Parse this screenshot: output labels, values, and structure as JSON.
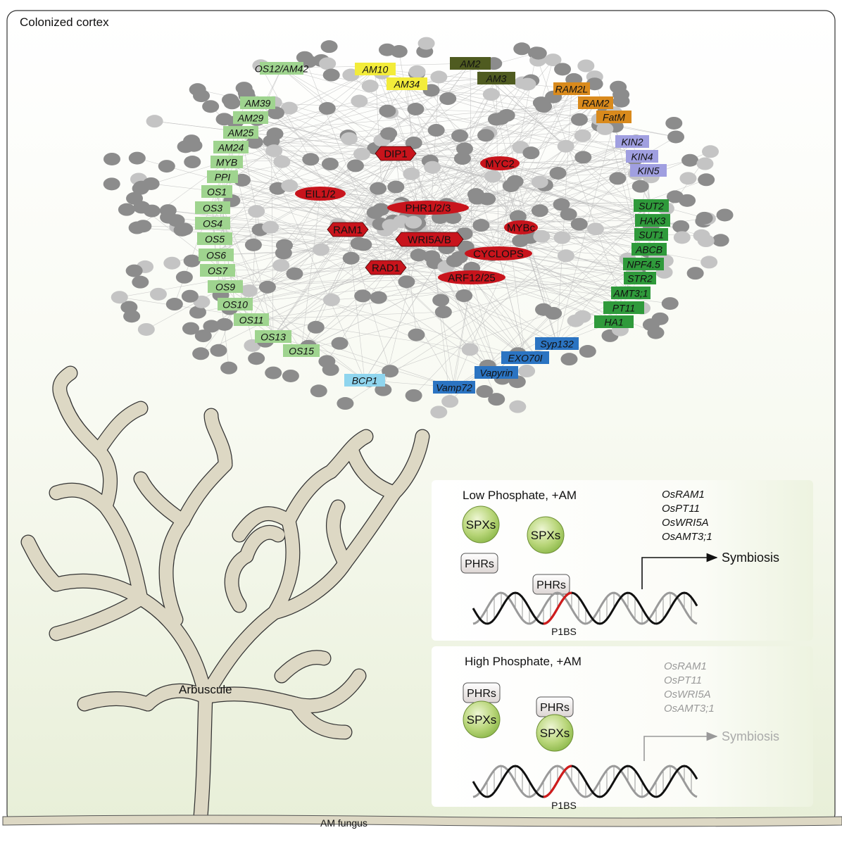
{
  "title": "Colonized cortex",
  "network": {
    "groups": [
      {
        "name": "left-light-green",
        "color": "#9fd48f",
        "labels": [
          "OS12/AM42",
          "AM39",
          "AM29",
          "AM25",
          "AM24",
          "MYB",
          "PPI",
          "OS1",
          "OS3",
          "OS4",
          "OS5",
          "OS6",
          "OS7",
          "OS9",
          "OS10",
          "OS11",
          "OS13",
          "OS15"
        ]
      },
      {
        "name": "yellow",
        "color": "#f3ec3a",
        "labels": [
          "AM10",
          "AM34"
        ]
      },
      {
        "name": "olive",
        "color": "#4f5b20",
        "labels": [
          "AM2",
          "AM3"
        ]
      },
      {
        "name": "orange",
        "color": "#d98a1c",
        "labels": [
          "RAM2L",
          "RAM2",
          "FatM"
        ]
      },
      {
        "name": "lavender",
        "color": "#a09fe0",
        "labels": [
          "KIN2",
          "KIN4",
          "KIN5"
        ]
      },
      {
        "name": "dark-green",
        "color": "#2f9a3b",
        "labels": [
          "SUT2",
          "HAK3",
          "SUT1",
          "ABCB",
          "NPF4.5",
          "STR2",
          "AMT3;1",
          "PT11",
          "HA1"
        ]
      },
      {
        "name": "blue",
        "color": "#2b74c2",
        "labels": [
          "Syp132",
          "EXO70I",
          "Vapyrin",
          "Vamp72"
        ]
      },
      {
        "name": "light-blue",
        "color": "#8fd5ee",
        "labels": [
          "BCP1"
        ]
      }
    ],
    "hubs": {
      "color": "#c8141c",
      "labels": [
        "DIP1",
        "MYC2",
        "EIL1/2",
        "PHR1/2/3",
        "RAM1",
        "MYBc",
        "WRI5A/B",
        "CYCLOPS",
        "RAD1",
        "ARF12/25"
      ]
    },
    "node_colors": {
      "dark": "#8c8c8c",
      "light": "#c4c4c4"
    }
  },
  "panels": {
    "low": {
      "title": "Low Phosphate, +AM",
      "spx": "SPXs",
      "phr": "PHRs",
      "motif": "P1BS",
      "genes": [
        "OsRAM1",
        "OsPT11",
        "OsWRI5A",
        "OsAMT3;1"
      ],
      "outcome": "Symbiosis"
    },
    "high": {
      "title": "High Phosphate, +AM",
      "spx": "SPXs",
      "phr": "PHRs",
      "motif": "P1BS",
      "genes": [
        "OsRAM1",
        "OsPT11",
        "OsWRI5A",
        "OsAMT3;1"
      ],
      "outcome": "Symbiosis"
    }
  },
  "arbuscule_label": "Arbuscule",
  "fungus_label": "AM fungus"
}
